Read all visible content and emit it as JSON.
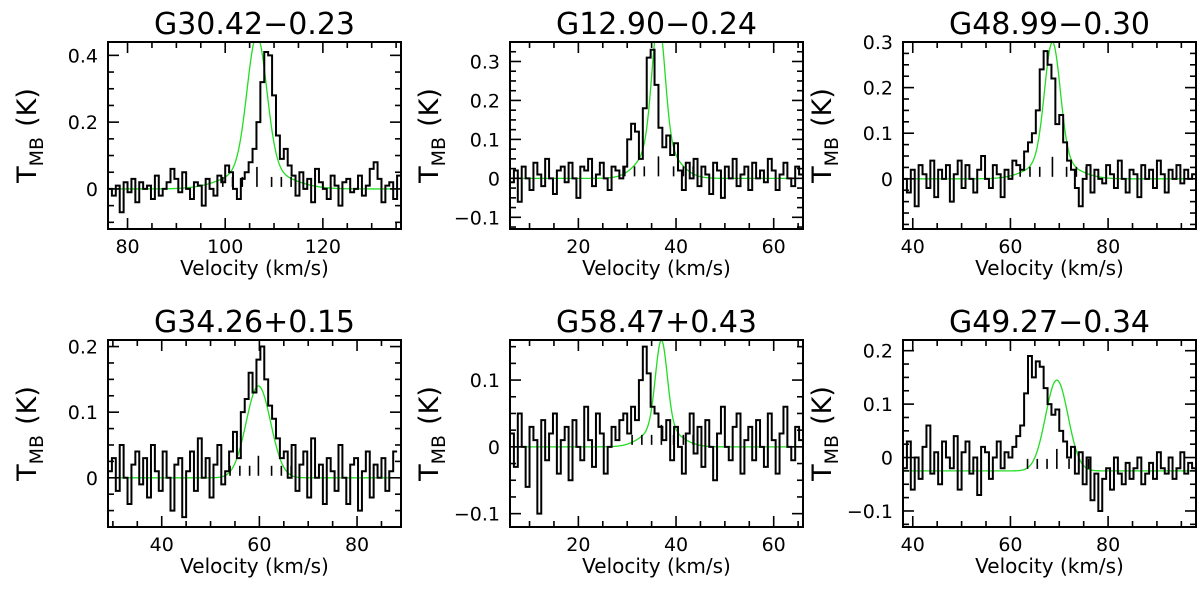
{
  "figure": {
    "ylabel_main": "T",
    "ylabel_sub": "MB",
    "ylabel_unit": "(K)"
  },
  "chart_data": [
    {
      "type": "line",
      "title": "G30.42−0.23",
      "xlabel": "Velocity (km/s)",
      "xlim": [
        76,
        136
      ],
      "ylim": [
        -0.12,
        0.44
      ],
      "xticks": [
        80,
        100,
        120
      ],
      "xtick_labels": [
        "80",
        "100",
        "120"
      ],
      "yticks": [
        0,
        0.2,
        0.4
      ],
      "ytick_labels": [
        "0",
        "0.2",
        "0.4"
      ],
      "fit": {
        "peak": 0.4,
        "center": 106.5,
        "sigma": 2.0,
        "wing_amp": 0.06,
        "wing_sigma": 6.0,
        "baseline": 0
      },
      "hfs_components": [
        99.5,
        101.5,
        103.5,
        106.5,
        109.5,
        111.5,
        113.5
      ],
      "spectrum": {
        "x0": 76,
        "dx": 0.8,
        "y": [
          0.0,
          -0.02,
          0.01,
          -0.07,
          0.02,
          -0.01,
          0.03,
          -0.04,
          0.02,
          0.0,
          0.01,
          -0.03,
          0.04,
          -0.02,
          0.0,
          0.02,
          0.06,
          0.03,
          -0.01,
          0.05,
          0.0,
          -0.03,
          0.02,
          0.01,
          -0.05,
          0.03,
          0.0,
          -0.02,
          0.04,
          0.02,
          0.07,
          0.05,
          0.0,
          -0.03,
          0.03,
          0.05,
          0.08,
          0.12,
          0.2,
          0.32,
          0.41,
          0.4,
          0.28,
          0.16,
          0.09,
          0.12,
          0.07,
          0.04,
          -0.02,
          0.05,
          0.0,
          0.03,
          -0.04,
          0.06,
          0.02,
          0.0,
          -0.03,
          0.04,
          0.01,
          -0.05,
          0.02,
          0.03,
          -0.01,
          0.0,
          0.04,
          -0.02,
          0.01,
          0.06,
          0.08,
          0.03,
          -0.04,
          0.01,
          0.02,
          -0.03,
          0.04,
          0.0
        ]
      }
    },
    {
      "type": "line",
      "title": "G12.90−0.24",
      "xlabel": "Velocity (km/s)",
      "xlim": [
        6,
        66
      ],
      "ylim": [
        -0.13,
        0.35
      ],
      "xticks": [
        20,
        40,
        60
      ],
      "xtick_labels": [
        "20",
        "40",
        "60"
      ],
      "yticks": [
        -0.1,
        0,
        0.1,
        0.2,
        0.3
      ],
      "ytick_labels": [
        "−0.1",
        "0",
        "0.1",
        "0.2",
        "0.3"
      ],
      "fit": {
        "peak": 0.32,
        "center": 36.4,
        "sigma": 1.3,
        "wing_amp": 0.09,
        "wing_sigma": 3.5,
        "baseline": 0
      },
      "hfs_components": [
        29.5,
        31.5,
        33.5,
        36.4,
        39.5,
        41.5,
        43.5
      ],
      "spectrum": {
        "x0": 6,
        "dx": 0.8,
        "y": [
          -0.01,
          0.02,
          -0.06,
          0.03,
          0.0,
          -0.03,
          0.04,
          0.01,
          -0.02,
          0.05,
          0.0,
          -0.04,
          0.02,
          0.03,
          -0.01,
          0.04,
          0.0,
          -0.05,
          0.03,
          0.02,
          0.05,
          -0.02,
          0.01,
          0.04,
          0.0,
          -0.03,
          0.03,
          0.02,
          0.0,
          0.03,
          0.1,
          0.14,
          0.12,
          0.05,
          0.18,
          0.31,
          0.33,
          0.24,
          0.13,
          0.08,
          0.11,
          0.06,
          0.09,
          0.02,
          -0.03,
          0.04,
          0.0,
          0.05,
          -0.02,
          0.03,
          0.01,
          -0.04,
          0.04,
          0.02,
          -0.05,
          0.03,
          0.0,
          0.05,
          -0.02,
          0.01,
          0.03,
          -0.03,
          0.04,
          0.0,
          0.02,
          -0.01,
          0.05,
          0.02,
          -0.03,
          0.01,
          0.04,
          0.0,
          -0.02,
          0.03,
          0.01
        ]
      }
    },
    {
      "type": "line",
      "title": "G48.99−0.30",
      "xlabel": "Velocity (km/s)",
      "xlim": [
        38,
        98
      ],
      "ylim": [
        -0.11,
        0.3
      ],
      "xticks": [
        40,
        60,
        80
      ],
      "xtick_labels": [
        "40",
        "60",
        "80"
      ],
      "yticks": [
        0,
        0.1,
        0.2,
        0.3
      ],
      "ytick_labels": [
        "0",
        "0.1",
        "0.2",
        "0.3"
      ],
      "fit": {
        "peak": 0.26,
        "center": 68.6,
        "sigma": 1.6,
        "wing_amp": 0.04,
        "wing_sigma": 4.5,
        "baseline": 0
      },
      "hfs_components": [
        62.0,
        64.0,
        66.0,
        68.6,
        71.5,
        73.5,
        75.5
      ],
      "spectrum": {
        "x0": 38,
        "dx": 0.8,
        "y": [
          0.0,
          -0.03,
          0.02,
          -0.06,
          0.03,
          0.01,
          -0.02,
          0.04,
          -0.04,
          0.02,
          0.0,
          0.03,
          -0.05,
          0.01,
          0.04,
          -0.02,
          0.03,
          0.0,
          -0.03,
          0.02,
          0.05,
          0.0,
          -0.02,
          0.03,
          0.01,
          -0.04,
          0.02,
          0.0,
          0.04,
          0.03,
          0.02,
          0.06,
          0.08,
          0.1,
          0.15,
          0.24,
          0.28,
          0.25,
          0.22,
          0.12,
          0.14,
          0.08,
          0.04,
          0.02,
          -0.02,
          -0.06,
          0.0,
          0.03,
          -0.03,
          0.02,
          0.0,
          -0.01,
          0.03,
          0.01,
          -0.02,
          0.04,
          0.0,
          -0.03,
          0.02,
          0.01,
          -0.04,
          0.03,
          0.0,
          0.02,
          -0.02,
          0.04,
          0.01,
          -0.03,
          0.02,
          0.0,
          0.03,
          -0.01,
          0.02,
          0.0,
          0.01
        ]
      }
    },
    {
      "type": "line",
      "title": "G34.26+0.15",
      "xlabel": "Velocity (km/s)",
      "xlim": [
        29,
        89
      ],
      "ylim": [
        -0.075,
        0.21
      ],
      "xticks": [
        40,
        60,
        80
      ],
      "xtick_labels": [
        "40",
        "60",
        "80"
      ],
      "yticks": [
        0,
        0.1,
        0.2
      ],
      "ytick_labels": [
        "0",
        "0.1",
        "0.2"
      ],
      "fit": {
        "peak": 0.14,
        "center": 59.8,
        "sigma": 2.5,
        "wing_amp": 0.0,
        "wing_sigma": 5,
        "baseline": 0
      },
      "hfs_components": [
        54.0,
        56.0,
        58.0,
        59.8,
        62.5,
        64.5,
        66.5
      ],
      "spectrum": {
        "x0": 29,
        "dx": 0.8,
        "y": [
          0.01,
          0.03,
          -0.02,
          0.05,
          0.0,
          -0.04,
          0.02,
          0.04,
          -0.01,
          0.03,
          -0.03,
          0.05,
          0.01,
          -0.02,
          0.04,
          0.0,
          -0.05,
          0.02,
          0.03,
          -0.06,
          0.01,
          0.04,
          -0.02,
          0.06,
          0.0,
          0.03,
          -0.03,
          0.02,
          0.05,
          -0.01,
          0.01,
          0.04,
          0.07,
          0.03,
          0.1,
          0.12,
          0.16,
          0.13,
          0.18,
          0.2,
          0.15,
          0.11,
          0.09,
          0.06,
          0.03,
          0.04,
          0.0,
          0.05,
          -0.02,
          0.02,
          0.04,
          -0.03,
          0.06,
          0.0,
          0.02,
          -0.04,
          0.03,
          0.01,
          -0.02,
          0.05,
          0.0,
          -0.04,
          0.02,
          0.03,
          -0.05,
          0.01,
          0.04,
          -0.03,
          0.02,
          0.0,
          0.03,
          -0.02,
          0.01,
          0.04
        ]
      }
    },
    {
      "type": "line",
      "title": "G58.47+0.43",
      "xlabel": "Velocity (km/s)",
      "xlim": [
        6,
        66
      ],
      "ylim": [
        -0.12,
        0.16
      ],
      "xticks": [
        20,
        40,
        60
      ],
      "xtick_labels": [
        "20",
        "40",
        "60"
      ],
      "yticks": [
        -0.1,
        0,
        0.1
      ],
      "ytick_labels": [
        "−0.1",
        "0",
        "0.1"
      ],
      "fit": {
        "peak": 0.13,
        "center": 37.0,
        "sigma": 1.2,
        "wing_amp": 0.03,
        "wing_sigma": 3.5,
        "baseline": 0
      },
      "hfs_components": [
        31.0,
        33.0,
        35.0,
        37.0,
        39.5,
        41.5,
        43.5
      ],
      "spectrum": {
        "x0": 6,
        "dx": 0.8,
        "y": [
          0.02,
          -0.03,
          0.05,
          0.0,
          -0.06,
          0.03,
          0.01,
          -0.1,
          0.04,
          -0.02,
          0.02,
          0.05,
          -0.04,
          0.01,
          0.03,
          -0.05,
          0.04,
          0.0,
          -0.02,
          0.06,
          0.01,
          -0.03,
          0.05,
          0.02,
          -0.04,
          0.0,
          0.03,
          0.01,
          0.04,
          0.05,
          0.02,
          0.06,
          0.04,
          0.1,
          0.15,
          0.11,
          0.06,
          0.05,
          0.03,
          0.01,
          0.04,
          -0.02,
          0.03,
          0.0,
          -0.04,
          0.02,
          0.05,
          -0.01,
          0.03,
          -0.03,
          0.04,
          0.0,
          -0.05,
          0.02,
          0.06,
          0.0,
          -0.02,
          0.03,
          0.05,
          -0.04,
          0.01,
          0.03,
          -0.02,
          0.04,
          0.0,
          -0.03,
          0.05,
          0.01,
          -0.04,
          0.02,
          0.06,
          0.0,
          -0.02,
          0.03,
          0.01
        ]
      }
    },
    {
      "type": "line",
      "title": "G49.27−0.34",
      "xlabel": "Velocity (km/s)",
      "xlim": [
        38,
        98
      ],
      "ylim": [
        -0.13,
        0.22
      ],
      "xticks": [
        40,
        60,
        80
      ],
      "xtick_labels": [
        "40",
        "60",
        "80"
      ],
      "yticks": [
        -0.1,
        0,
        0.1,
        0.2
      ],
      "ytick_labels": [
        "−0.1",
        "0",
        "0.1",
        "0.2"
      ],
      "fit": {
        "peak": 0.17,
        "center": 69.5,
        "sigma": 2.3,
        "wing_amp": 0.0,
        "wing_sigma": 5,
        "baseline": -0.025
      },
      "hfs_components": [
        63.5,
        65.5,
        67.5,
        69.5,
        72.0,
        74.0,
        76.0
      ],
      "spectrum": {
        "x0": 38,
        "dx": 0.8,
        "y": [
          -0.02,
          0.03,
          -0.06,
          0.0,
          -0.04,
          0.02,
          0.06,
          -0.03,
          0.01,
          -0.05,
          0.03,
          0.0,
          -0.02,
          0.04,
          -0.06,
          0.01,
          0.03,
          -0.03,
          0.0,
          -0.07,
          0.02,
          0.01,
          -0.04,
          0.0,
          0.03,
          -0.02,
          0.01,
          0.0,
          0.02,
          0.04,
          0.06,
          0.12,
          0.19,
          0.15,
          0.18,
          0.17,
          0.13,
          0.1,
          0.08,
          0.09,
          0.05,
          0.03,
          0.0,
          0.02,
          -0.03,
          0.01,
          -0.05,
          0.0,
          -0.08,
          -0.03,
          -0.1,
          -0.04,
          -0.02,
          -0.06,
          0.0,
          -0.03,
          -0.05,
          -0.01,
          -0.04,
          -0.02,
          0.0,
          -0.05,
          -0.03,
          -0.01,
          -0.04,
          0.01,
          -0.02,
          -0.03,
          0.0,
          -0.04,
          -0.02,
          0.01,
          -0.03,
          -0.01,
          -0.02
        ]
      }
    }
  ]
}
